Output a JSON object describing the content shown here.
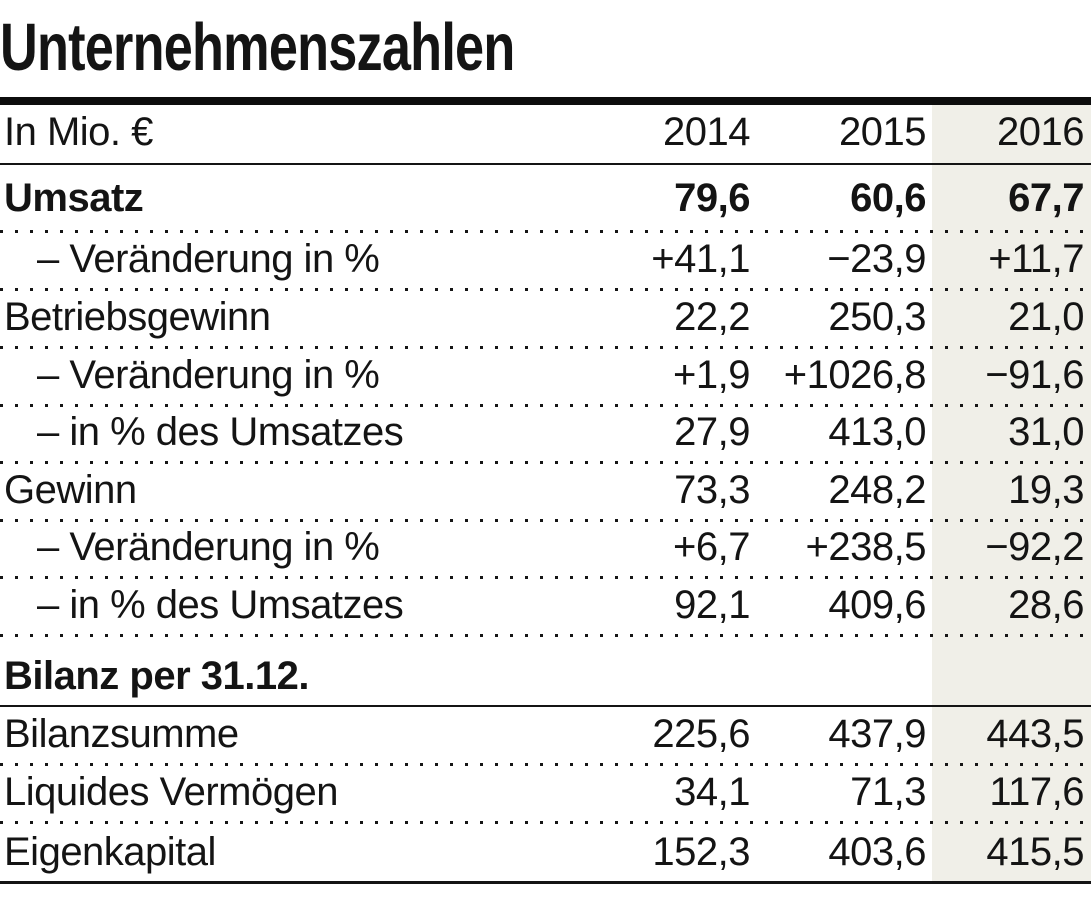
{
  "chart_data": {
    "type": "table",
    "title": "Unternehmenszahlen",
    "unit_label": "In Mio. €",
    "columns": [
      "2014",
      "2015",
      "2016"
    ],
    "highlight_column": "2016",
    "highlight_color": "#f0efe8",
    "rows": [
      {
        "label": "Umsatz",
        "emphasis": "bold",
        "values": [
          "79,6",
          "60,6",
          "67,7"
        ]
      },
      {
        "label": "– Veränderung in %",
        "emphasis": "indent",
        "values": [
          "+41,1",
          "−23,9",
          "+11,7"
        ]
      },
      {
        "label": "Betriebsgewinn",
        "emphasis": "normal",
        "values": [
          "22,2",
          "250,3",
          "21,0"
        ]
      },
      {
        "label": "– Veränderung in %",
        "emphasis": "indent",
        "values": [
          "+1,9",
          "+1026,8",
          "−91,6"
        ]
      },
      {
        "label": "– in % des Umsatzes",
        "emphasis": "indent",
        "values": [
          "27,9",
          "413,0",
          "31,0"
        ]
      },
      {
        "label": "Gewinn",
        "emphasis": "normal",
        "values": [
          "73,3",
          "248,2",
          "19,3"
        ]
      },
      {
        "label": "– Veränderung in %",
        "emphasis": "indent",
        "values": [
          "+6,7",
          "+238,5",
          "−92,2"
        ]
      },
      {
        "label": "– in % des Umsatzes",
        "emphasis": "indent",
        "values": [
          "92,1",
          "409,6",
          "28,6"
        ]
      },
      {
        "label": "Bilanz per 31.12.",
        "emphasis": "section",
        "values": [
          "",
          "",
          ""
        ]
      },
      {
        "label": "Bilanzsumme",
        "emphasis": "normal",
        "values": [
          "225,6",
          "437,9",
          "443,5"
        ]
      },
      {
        "label": "Liquides Vermögen",
        "emphasis": "normal",
        "values": [
          "34,1",
          "71,3",
          "117,6"
        ]
      },
      {
        "label": "Eigenkapital",
        "emphasis": "normal",
        "values": [
          "152,3",
          "403,6",
          "415,5"
        ]
      }
    ]
  }
}
